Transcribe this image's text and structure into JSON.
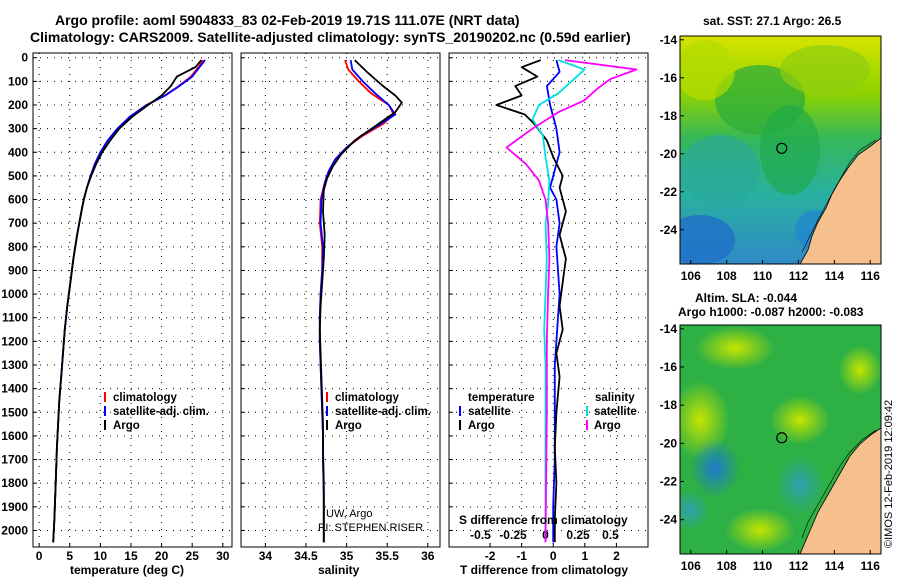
{
  "header": {
    "line1": "Argo profile: aoml 5904833_83 02-Feb-2019 19.71S 111.07E (NRT data)",
    "line2": "Climatology: CARS2009. Satellite-adjusted climatology: synTS_20190202.nc (0.59d earlier)"
  },
  "colors": {
    "climatology": "#ff0000",
    "satellite": "#0000ff",
    "argo": "#000000",
    "satellite_s": "#00e0e0",
    "argo_s": "#ff00ff",
    "land": "#f5c08c"
  },
  "credits": {
    "pi_line1": "UW, Argo",
    "pi_line2": "PI: STEPHEN RISER",
    "imos": "©IMOS 12-Feb-2019 12:09:42"
  },
  "chart_data": [
    {
      "type": "line",
      "title": "temperature",
      "xlabel": "temperature (deg C)",
      "ylabel": "pressure",
      "xlim": [
        -1,
        31.5
      ],
      "ylim": [
        2070,
        -20
      ],
      "x_ticks": [
        0,
        5,
        10,
        15,
        20,
        25,
        30
      ],
      "y_ticks": [
        0,
        100,
        200,
        300,
        400,
        500,
        600,
        700,
        800,
        900,
        1000,
        1100,
        1200,
        1300,
        1400,
        1500,
        1600,
        1700,
        1800,
        1900,
        2000
      ],
      "legend": [
        "climatology",
        "satellite-adj. clim.",
        "Argo"
      ],
      "series": [
        {
          "name": "climatology",
          "color": "#ff0000",
          "x": [
            26.8,
            26,
            24.8,
            22.8,
            20.5,
            17.5,
            14.8,
            12.8,
            11.2,
            10,
            9.1,
            8.4,
            7.8,
            7.3,
            6.9,
            6.2,
            5.6,
            5.1,
            4.6,
            4.2,
            3.9,
            3.6,
            3.3,
            3.1,
            2.9,
            2.7,
            2.5,
            2.3
          ],
          "y": [
            10,
            40,
            80,
            120,
            160,
            200,
            250,
            300,
            350,
            400,
            450,
            500,
            550,
            600,
            650,
            750,
            850,
            950,
            1050,
            1150,
            1250,
            1350,
            1450,
            1550,
            1650,
            1800,
            1950,
            2050
          ]
        },
        {
          "name": "satellite-adj. clim.",
          "color": "#0000ff",
          "x": [
            27.1,
            26.2,
            25,
            22.9,
            20.6,
            17.6,
            14.8,
            12.8,
            11.2,
            10,
            9.1,
            8.4,
            7.8,
            7.3,
            6.9,
            6.2,
            5.6,
            5.1,
            4.6,
            4.2,
            3.9,
            3.6,
            3.3,
            3.1,
            2.9,
            2.7,
            2.5,
            2.3
          ],
          "y": [
            10,
            40,
            80,
            120,
            160,
            200,
            250,
            300,
            350,
            400,
            450,
            500,
            550,
            600,
            650,
            750,
            850,
            950,
            1050,
            1150,
            1250,
            1350,
            1450,
            1550,
            1650,
            1800,
            1950,
            2050
          ]
        },
        {
          "name": "Argo",
          "color": "#000000",
          "x": [
            26.5,
            25.5,
            22.5,
            21.5,
            20,
            17.8,
            15.2,
            13.1,
            11.6,
            10.3,
            9.3,
            8.5,
            7.8,
            7.3,
            6.9,
            6.2,
            5.6,
            5.1,
            4.6,
            4.2,
            3.9,
            3.6,
            3.3,
            3.1,
            2.9,
            2.7,
            2.5,
            2.3
          ],
          "y": [
            10,
            40,
            80,
            120,
            160,
            200,
            250,
            300,
            350,
            400,
            450,
            500,
            550,
            600,
            650,
            750,
            850,
            950,
            1050,
            1150,
            1250,
            1350,
            1450,
            1550,
            1650,
            1800,
            1950,
            2050
          ]
        }
      ]
    },
    {
      "type": "line",
      "title": "salinity",
      "xlabel": "salinity",
      "ylabel": "pressure",
      "xlim": [
        33.7,
        36.15
      ],
      "ylim": [
        2070,
        -20
      ],
      "x_ticks": [
        34,
        34.5,
        35,
        35.5,
        36
      ],
      "legend": [
        "climatology",
        "satellite-adj. clim.",
        "Argo"
      ],
      "series": [
        {
          "name": "climatology",
          "color": "#ff0000",
          "x": [
            34.98,
            35.02,
            35.15,
            35.3,
            35.52,
            35.58,
            35.45,
            35.2,
            35.0,
            34.86,
            34.78,
            34.73,
            34.68,
            34.67,
            34.7,
            34.7,
            34.68,
            34.67,
            34.67,
            34.68,
            34.69,
            34.7,
            34.71,
            34.71,
            34.72,
            34.72
          ],
          "y": [
            10,
            50,
            100,
            150,
            200,
            240,
            280,
            330,
            380,
            430,
            480,
            530,
            600,
            700,
            800,
            900,
            1000,
            1100,
            1200,
            1300,
            1400,
            1500,
            1600,
            1700,
            1850,
            2050
          ]
        },
        {
          "name": "satellite-adj. clim.",
          "color": "#0000ff",
          "x": [
            35.05,
            35.07,
            35.2,
            35.35,
            35.52,
            35.6,
            35.42,
            35.18,
            35.0,
            34.86,
            34.78,
            34.73,
            34.69,
            34.68,
            34.71,
            34.7,
            34.68,
            34.67,
            34.67,
            34.68,
            34.69,
            34.7,
            34.71,
            34.71,
            34.72,
            34.72
          ],
          "y": [
            10,
            50,
            100,
            150,
            200,
            240,
            280,
            330,
            380,
            430,
            480,
            530,
            600,
            700,
            800,
            900,
            1000,
            1100,
            1200,
            1300,
            1400,
            1500,
            1600,
            1700,
            1850,
            2050
          ]
        },
        {
          "name": "Argo",
          "color": "#000000",
          "x": [
            35.1,
            35.25,
            35.45,
            35.6,
            35.68,
            35.6,
            35.35,
            35.1,
            34.93,
            34.83,
            34.76,
            34.72,
            34.71,
            34.73,
            34.72,
            34.7,
            34.68,
            34.67,
            34.68,
            34.69,
            34.7,
            34.71,
            34.71,
            34.72,
            34.72
          ],
          "y": [
            10,
            60,
            120,
            160,
            190,
            230,
            290,
            350,
            410,
            460,
            510,
            560,
            650,
            750,
            850,
            950,
            1050,
            1150,
            1250,
            1350,
            1450,
            1550,
            1650,
            1800,
            2050
          ]
        }
      ]
    },
    {
      "type": "line",
      "title": "difference from climatology",
      "xlabel": "T difference from climatology",
      "xlabel2": "S difference from climatology",
      "xlim": [
        -3.3,
        3.0
      ],
      "ylim": [
        2070,
        -20
      ],
      "x_ticks": [
        -2,
        -1,
        0,
        1,
        2
      ],
      "x_ticks_s": [
        -0.5,
        -0.25,
        0,
        0.25,
        0.5
      ],
      "x_ticks_s_labels": [
        "-0.5",
        "-0.25",
        "0",
        "0.25",
        "0.5"
      ],
      "legend_t_title": "temperature",
      "legend_s_title": "salinity",
      "legend_t": [
        "satellite",
        "Argo"
      ],
      "legend_s": [
        "satellite",
        "Argo"
      ],
      "series": [
        {
          "name": "T satellite",
          "color": "#0000ff",
          "x": [
            0.1,
            0.2,
            -0.2,
            -0.1,
            0.1,
            0.2,
            0,
            -0.1,
            0.1,
            0.2,
            0.1,
            0.15,
            0.2,
            0.15,
            0.1,
            0.05,
            0.05,
            0.05,
            0,
            0
          ],
          "y": [
            10,
            60,
            120,
            200,
            300,
            400,
            500,
            550,
            600,
            700,
            800,
            900,
            1000,
            1100,
            1200,
            1300,
            1500,
            1700,
            1900,
            2050
          ]
        },
        {
          "name": "T Argo",
          "color": "#000000",
          "x": [
            -0.4,
            -1.0,
            -0.5,
            -1.2,
            -1.0,
            -1.8,
            -0.9,
            -0.6,
            -0.2,
            0.0,
            0.3,
            0.2,
            0.4,
            0.2,
            0.4,
            0.3,
            0.2,
            0.3,
            0.1,
            0.2,
            0.1,
            0.05,
            0.1,
            0.05,
            0.05
          ],
          "y": [
            10,
            40,
            80,
            120,
            160,
            200,
            240,
            280,
            350,
            420,
            500,
            550,
            650,
            750,
            850,
            950,
            1050,
            1150,
            1250,
            1350,
            1500,
            1650,
            1800,
            1950,
            2050
          ]
        },
        {
          "name": "S satellite",
          "color": "#00e0e0",
          "x": [
            0.1,
            0.3,
            0.2,
            0.1,
            -0.05,
            -0.1,
            -0.02,
            0,
            0.03,
            0.02,
            0.0,
            0.01,
            0.0,
            -0.01,
            0.0,
            0.0,
            0.0,
            0.0,
            0.0,
            0.0
          ],
          "y": [
            10,
            50,
            100,
            150,
            200,
            260,
            330,
            420,
            520,
            620,
            700,
            850,
            1000,
            1150,
            1300,
            1450,
            1600,
            1750,
            1900,
            2050
          ]
        },
        {
          "name": "S Argo",
          "color": "#ff00ff",
          "x": [
            0.15,
            0.7,
            0.5,
            0.4,
            0.3,
            0.1,
            -0.1,
            -0.3,
            -0.15,
            -0.05,
            0.0,
            0.02,
            0.03,
            0.02,
            0.01,
            0.01,
            0.0
          ],
          "y": [
            10,
            50,
            90,
            130,
            180,
            230,
            300,
            380,
            450,
            520,
            600,
            700,
            850,
            1000,
            1200,
            1500,
            2050
          ]
        }
      ]
    }
  ],
  "maps": [
    {
      "title": "sat. SST: 27.1  Argo: 26.5",
      "x_ticks": [
        106,
        108,
        110,
        112,
        114,
        116
      ],
      "y_ticks": [
        -14,
        -16,
        -18,
        -20,
        -22,
        -24
      ],
      "profile_lon": 111.07,
      "profile_lat": -19.71
    },
    {
      "title": "Altim. SLA: -0.044",
      "subtitle": "Argo h1000: -0.087 h2000: -0.083",
      "x_ticks": [
        106,
        108,
        110,
        112,
        114,
        116
      ],
      "y_ticks": [
        -14,
        -16,
        -18,
        -20,
        -22,
        -24
      ],
      "profile_lon": 111.07,
      "profile_lat": -19.71
    }
  ]
}
